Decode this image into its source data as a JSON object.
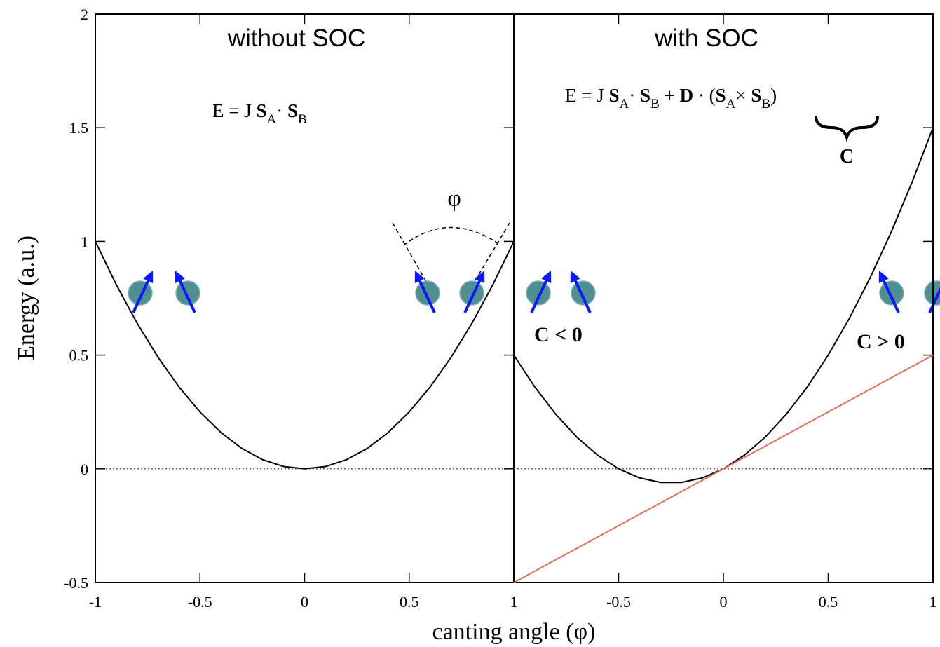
{
  "chart_data": [
    {
      "type": "line",
      "title": "without SOC",
      "formula": [
        "E  = J ",
        "S",
        "A",
        "· ",
        "S",
        "B"
      ],
      "angle_label": "φ",
      "xlabel": "canting angle (φ)",
      "ylabel": "Energy (a.u.)",
      "x": [
        -1,
        -0.9,
        -0.8,
        -0.7,
        -0.6,
        -0.5,
        -0.4,
        -0.3,
        -0.2,
        -0.1,
        0,
        0.1,
        0.2,
        0.3,
        0.4,
        0.5,
        0.6,
        0.7,
        0.8,
        0.9,
        1
      ],
      "series": [
        {
          "color": "#000000",
          "values": [
            1,
            0.81,
            0.64,
            0.49,
            0.36,
            0.25,
            0.16,
            0.09,
            0.04,
            0.01,
            0,
            0.01,
            0.04,
            0.09,
            0.16,
            0.25,
            0.36,
            0.49,
            0.64,
            0.81,
            1
          ]
        }
      ],
      "hline": 0,
      "xlim": [
        -1,
        1
      ],
      "xticks": [
        -1,
        -0.5,
        0,
        0.5,
        1
      ],
      "ylim": [
        -0.5,
        2
      ],
      "yticks": [
        -0.5,
        0,
        0.5,
        1,
        1.5,
        2
      ]
    },
    {
      "type": "line",
      "title": "with SOC",
      "formula": [
        "E  = J ",
        "S",
        "A",
        "· ",
        "S",
        "B",
        " + ",
        "D",
        " · (",
        "S",
        "A",
        "× ",
        "S",
        "B",
        ")"
      ],
      "brace_label": "C",
      "left_label": "C  < 0",
      "right_label": "C >  0",
      "x": [
        -1,
        -0.9,
        -0.8,
        -0.7,
        -0.6,
        -0.5,
        -0.4,
        -0.3,
        -0.2,
        -0.1,
        0,
        0.1,
        0.2,
        0.3,
        0.4,
        0.5,
        0.6,
        0.7,
        0.8,
        0.9,
        1
      ],
      "series": [
        {
          "color": "#000000",
          "values": [
            0.5,
            0.36,
            0.24,
            0.14,
            0.06,
            0,
            -0.04,
            -0.06,
            -0.06,
            -0.04,
            0,
            0.06,
            0.14,
            0.24,
            0.36,
            0.5,
            0.66,
            0.84,
            1.04,
            1.26,
            1.5
          ]
        },
        {
          "color": "#e0705a",
          "values": [
            -0.5,
            -0.45,
            -0.4,
            -0.35,
            -0.3,
            -0.25,
            -0.2,
            -0.15,
            -0.1,
            -0.05,
            0,
            0.05,
            0.1,
            0.15,
            0.2,
            0.25,
            0.3,
            0.35,
            0.4,
            0.45,
            0.5
          ]
        }
      ],
      "hline": 0,
      "xlim": [
        -1,
        1
      ],
      "xticks": [
        -0.5,
        0,
        0.5,
        1
      ],
      "ylim": [
        -0.5,
        2
      ]
    }
  ]
}
